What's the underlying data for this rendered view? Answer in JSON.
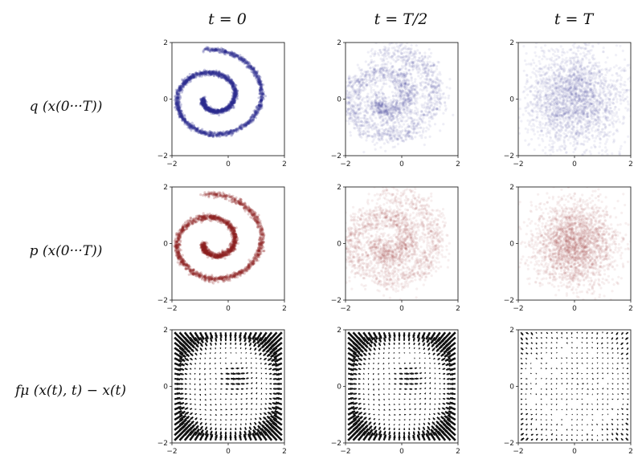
{
  "columns": [
    {
      "title": "t = 0"
    },
    {
      "title": "t = T/2"
    },
    {
      "title": "t = T"
    }
  ],
  "rows": [
    {
      "label": "q (x(0···T))",
      "kind": "scatter",
      "color": "#2b2b8f"
    },
    {
      "label": "p (x(0···T))",
      "kind": "scatter",
      "color": "#8f2222"
    },
    {
      "label": "fμ (x(t), t) − x(t)",
      "kind": "quiver",
      "color": "#111111"
    }
  ],
  "axes": {
    "xlim": [
      -2,
      2
    ],
    "ylim": [
      -2,
      2
    ],
    "xticks": [
      "−2",
      "0",
      "2"
    ],
    "yticks": [
      "2",
      "0",
      "−2"
    ]
  },
  "chart_data": [
    {
      "type": "scatter",
      "row": 1,
      "column": 1,
      "description_series": "spiral samples, sharp",
      "spiral": {
        "turns": 1.75,
        "r_start": 0.35,
        "r_end": 2.1
      },
      "noise": 0.04,
      "opacity": 0.25,
      "n_points": 2200
    },
    {
      "type": "scatter",
      "row": 1,
      "column": 2,
      "description_series": "spiral samples, diffused",
      "spiral": {
        "turns": 1.75,
        "r_start": 0.35,
        "r_end": 2.1
      },
      "noise": 0.22,
      "opacity": 0.08,
      "n_points": 2200
    },
    {
      "type": "scatter",
      "row": 1,
      "column": 3,
      "description_series": "isotropic noise",
      "noise_only": true,
      "sigma": 0.85,
      "opacity": 0.07,
      "n_points": 2400
    },
    {
      "type": "scatter",
      "row": 2,
      "column": 1,
      "description_series": "generated spiral, sharp",
      "spiral": {
        "turns": 1.75,
        "r_start": 0.35,
        "r_end": 2.1
      },
      "noise": 0.05,
      "opacity": 0.22,
      "n_points": 2200
    },
    {
      "type": "scatter",
      "row": 2,
      "column": 2,
      "description_series": "generated spiral, diffused",
      "spiral": {
        "turns": 1.75,
        "r_start": 0.35,
        "r_end": 2.1
      },
      "noise": 0.24,
      "opacity": 0.07,
      "n_points": 2200
    },
    {
      "type": "scatter",
      "row": 2,
      "column": 3,
      "description_series": "generated noise",
      "noise_only": true,
      "sigma": 0.75,
      "opacity": 0.07,
      "n_points": 2400
    },
    {
      "type": "quiver",
      "row": 3,
      "column": 1,
      "grid": 22,
      "strength": 1.0
    },
    {
      "type": "quiver",
      "row": 3,
      "column": 2,
      "grid": 22,
      "strength": 0.95
    },
    {
      "type": "quiver",
      "row": 3,
      "column": 3,
      "grid": 22,
      "strength": 0.22
    }
  ]
}
